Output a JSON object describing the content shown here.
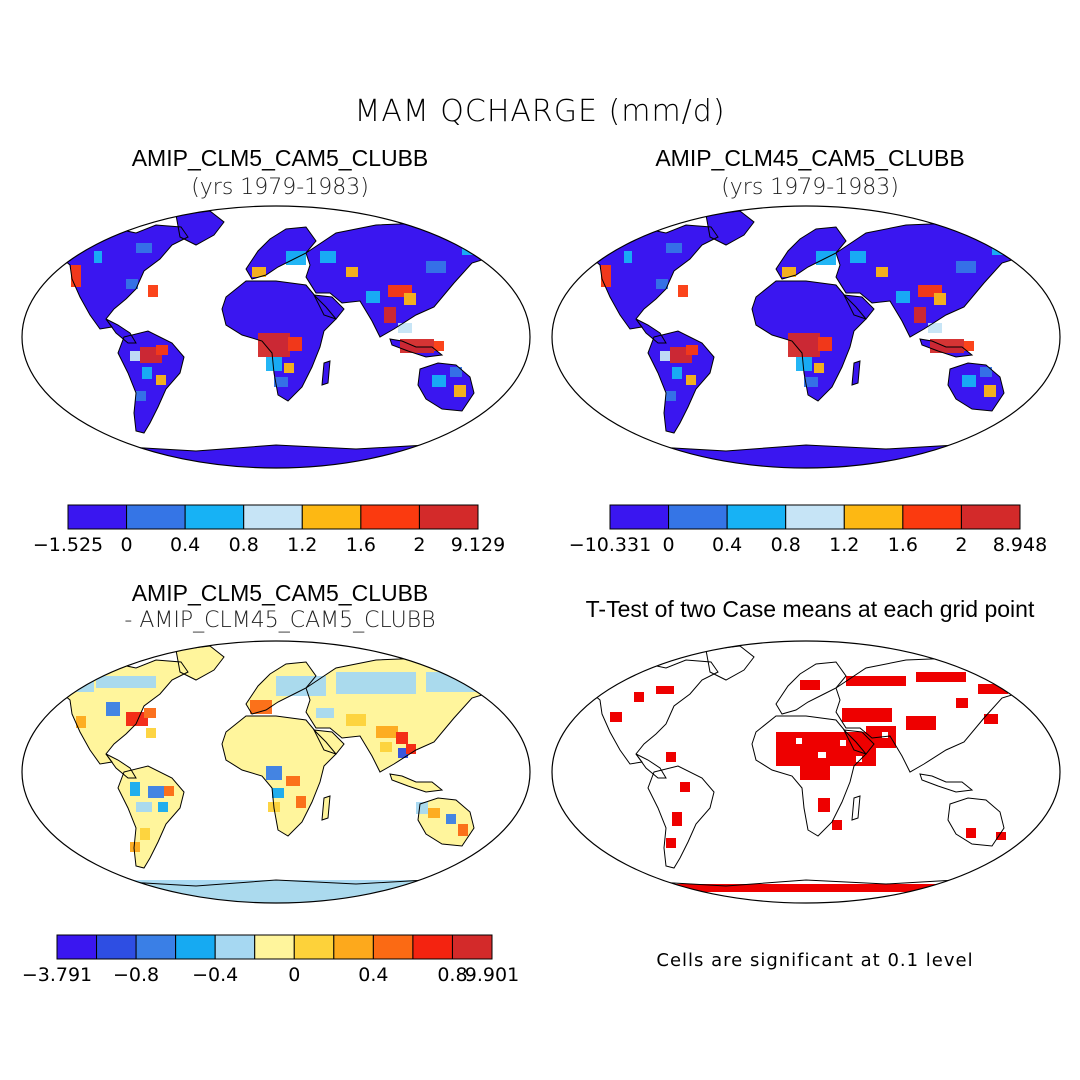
{
  "main_title": "MAM QCHARGE (mm/d)",
  "panels": [
    {
      "title": "AMIP_CLM5_CAM5_CLUBB",
      "subtitle": "(yrs 1979-1983)",
      "type": "field"
    },
    {
      "title": "AMIP_CLM45_CAM5_CLUBB",
      "subtitle": "(yrs 1979-1983)",
      "type": "field"
    },
    {
      "title": "AMIP_CLM5_CAM5_CLUBB",
      "subtitle": "- AMIP_CLM45_CAM5_CLUBB",
      "type": "difference"
    },
    {
      "title": "T-Test of two Case means at each grid point",
      "subtitle": "",
      "type": "significance"
    }
  ],
  "colorbars": [
    {
      "colors": [
        "#3a16f0",
        "#3575e6",
        "#17b2f5",
        "#c6e4f6",
        "#fdb813",
        "#fb3a0f",
        "#d32a2a"
      ],
      "labels": [
        "−1.525",
        "0",
        "0.4",
        "0.8",
        "1.2",
        "1.6",
        "2",
        "9.129"
      ]
    },
    {
      "colors": [
        "#3a16f0",
        "#3575e6",
        "#17b2f5",
        "#c6e4f6",
        "#fdb813",
        "#fb3a0f",
        "#d32a2a"
      ],
      "labels": [
        "−10.331",
        "0",
        "0.4",
        "0.8",
        "1.2",
        "1.6",
        "2",
        "8.948"
      ]
    },
    {
      "colors": [
        "#3a16f0",
        "#2e4ee3",
        "#3a7fe6",
        "#16aaf2",
        "#a6d8f2",
        "#fff59c",
        "#fdd23a",
        "#fda91c",
        "#fb6a14",
        "#f42310",
        "#d32a2a"
      ],
      "labels": [
        "−3.791",
        "−0.8",
        "−0.4",
        "0",
        "0.4",
        "0.8",
        "9.901"
      ]
    }
  ],
  "significance_note": "Cells are significant at 0.1 level"
}
